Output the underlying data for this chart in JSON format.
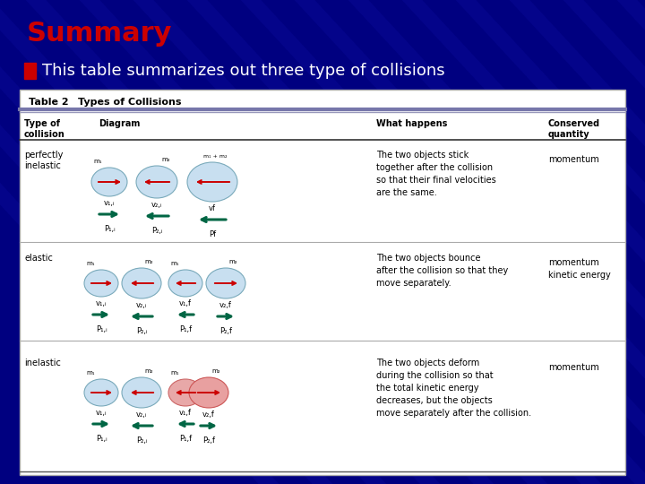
{
  "title": "Summary",
  "bullet_text": "This table summarizes out three type of collisions",
  "title_color": "#cc0000",
  "bullet_color": "#ffffff",
  "bullet_marker_color": "#cc0000",
  "bg_color": "#000080",
  "table_title": "Table 2",
  "table_subtitle": "Types of Collisions",
  "rows": [
    {
      "type": "perfectly\ninelastic",
      "what": "The two objects stick\ntogether after the collision\nso that their final velocities\nare the same.",
      "conserved": "momentum"
    },
    {
      "type": "elastic",
      "what": "The two objects bounce\nafter the collision so that they\nmove separately.",
      "conserved": "momentum\nkinetic energy"
    },
    {
      "type": "inelastic",
      "what": "The two objects deform\nduring the collision so that\nthe total kinetic energy\ndecreases, but the objects\nmove separately after the collision.",
      "conserved": "momentum"
    }
  ],
  "table_bg": "#ffffff",
  "ball_color": "#b8d4e8",
  "ball_edge": "#7aaabb",
  "ball_color_light": "#c8dff0",
  "arrow_color": "#cc0000",
  "momentum_color": "#006644"
}
